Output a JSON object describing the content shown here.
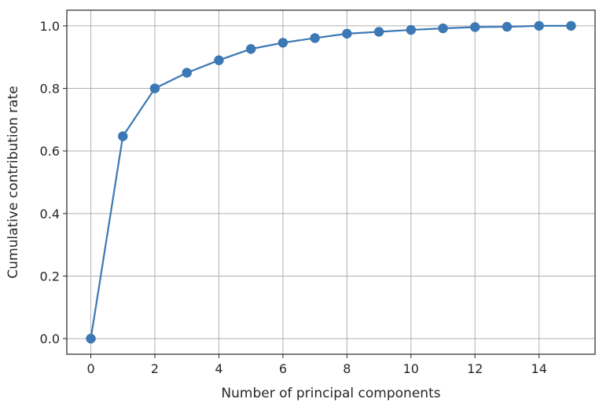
{
  "chart_data": {
    "type": "line",
    "title": "",
    "xlabel": "Number of principal components",
    "ylabel": "Cumulative contribution rate",
    "xlim": [
      -0.75,
      15.75
    ],
    "ylim": [
      -0.05,
      1.05
    ],
    "xticks": [
      0,
      2,
      4,
      6,
      8,
      10,
      12,
      14
    ],
    "xtick_labels": [
      "0",
      "2",
      "4",
      "6",
      "8",
      "10",
      "12",
      "14"
    ],
    "yticks": [
      0.0,
      0.2,
      0.4,
      0.6,
      0.8,
      1.0
    ],
    "ytick_labels": [
      "0.0",
      "0.2",
      "0.4",
      "0.6",
      "0.8",
      "1.0"
    ],
    "grid": true,
    "marker": "circle",
    "color": "#3b78b4",
    "series": [
      {
        "x": [
          0,
          1,
          2,
          3,
          4,
          5,
          6,
          7,
          8,
          9,
          10,
          11,
          12,
          13,
          14,
          15
        ],
        "values": [
          0.0,
          0.647,
          0.8,
          0.85,
          0.89,
          0.926,
          0.946,
          0.961,
          0.975,
          0.981,
          0.987,
          0.992,
          0.996,
          0.997,
          1.0,
          1.0
        ]
      }
    ]
  }
}
